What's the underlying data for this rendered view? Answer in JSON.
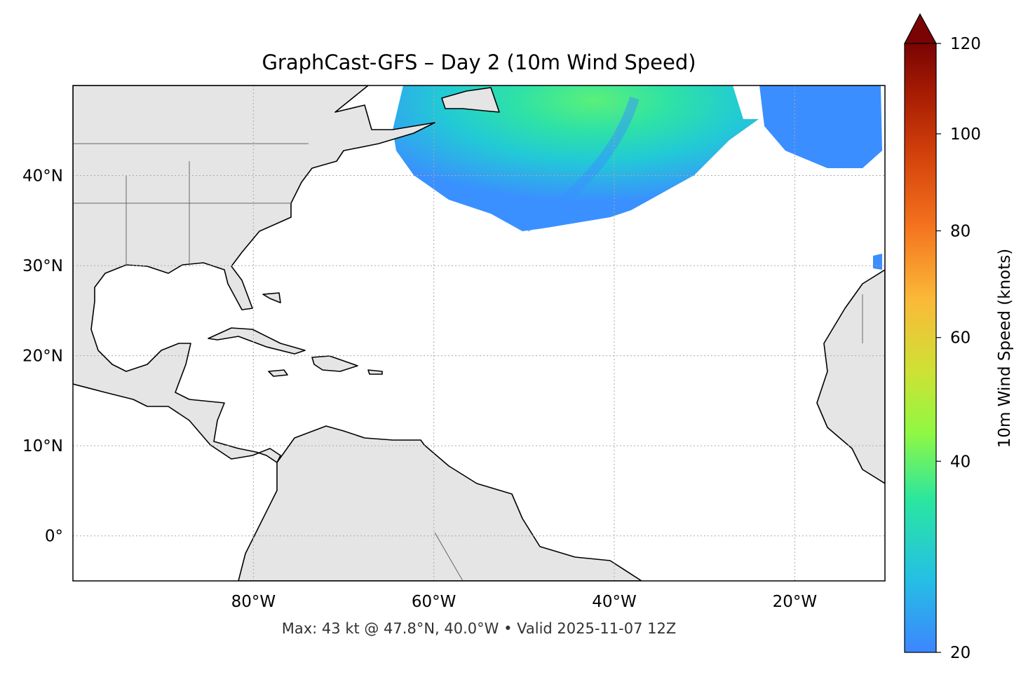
{
  "title": "GraphCast-GFS – Day 2 (10m Wind Speed)",
  "footer": "Max: 43 kt @ 47.8°N, 40.0°W • Valid 2025-11-07 12Z",
  "map": {
    "extent_lon": [
      -100,
      -10
    ],
    "extent_lat": [
      -5,
      50
    ],
    "lon_ticks": [
      {
        "value": -80,
        "label": "80°W"
      },
      {
        "value": -60,
        "label": "60°W"
      },
      {
        "value": -40,
        "label": "40°W"
      },
      {
        "value": -20,
        "label": "20°W"
      }
    ],
    "lat_ticks": [
      {
        "value": 40,
        "label": "40°N"
      },
      {
        "value": 30,
        "label": "30°N"
      },
      {
        "value": 20,
        "label": "20°N"
      },
      {
        "value": 10,
        "label": "10°N"
      },
      {
        "value": 0,
        "label": "0°"
      }
    ],
    "gridlines": true,
    "land_color": "#e5e5e5",
    "coast_color": "#000000",
    "border_color": "#666666"
  },
  "colorbar": {
    "label": "10m Wind Speed (knots)",
    "range": [
      20,
      120
    ],
    "extend": "max",
    "ticks": [
      {
        "value": 20,
        "label": "20"
      },
      {
        "value": 40,
        "label": "40"
      },
      {
        "value": 60,
        "label": "60"
      },
      {
        "value": 80,
        "label": "80"
      },
      {
        "value": 100,
        "label": "100"
      },
      {
        "value": 120,
        "label": "120"
      }
    ],
    "colormap": "turbo"
  },
  "max_point": {
    "speed_kt": 43,
    "lat": 47.8,
    "lon": -40.0
  }
}
